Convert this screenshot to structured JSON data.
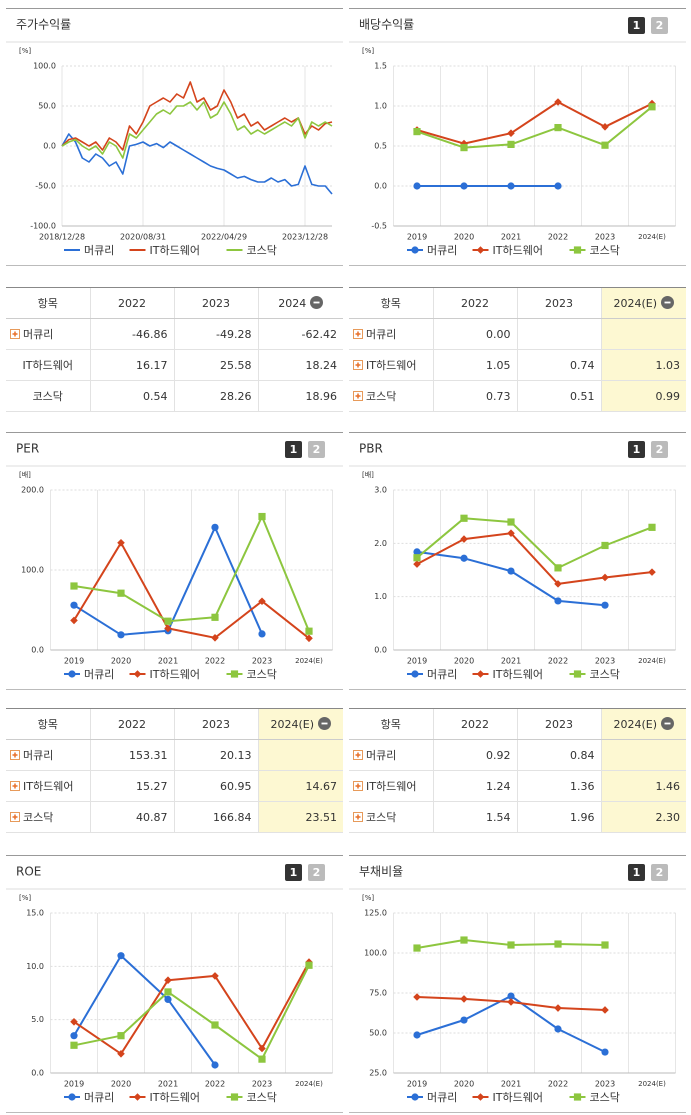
{
  "chart_data": [
    {
      "type": "line",
      "title": "주가수익률",
      "unit": "[%]",
      "categories": [
        "2018/12/28",
        null,
        null,
        null,
        null,
        null,
        null,
        null,
        null,
        null,
        null,
        null,
        "2020/08/31",
        null,
        null,
        null,
        null,
        null,
        null,
        null,
        null,
        null,
        null,
        null,
        "2022/04/29",
        null,
        null,
        null,
        null,
        null,
        null,
        null,
        null,
        null,
        null,
        null,
        "2023/12/28",
        null,
        null,
        null,
        null
      ],
      "ylim": [
        -100,
        100
      ],
      "yticks": [
        {
          "value": -100,
          "label": "-100.0"
        },
        {
          "value": -50,
          "label": "-50.0"
        },
        {
          "value": 0,
          "label": "0.0"
        },
        {
          "value": 50,
          "label": "50.0"
        },
        {
          "value": 100,
          "label": "100.0"
        }
      ],
      "grid": true,
      "markers": false,
      "series": [
        {
          "name": "머큐리",
          "color": "#2b6fd6",
          "marker": "circle",
          "values": [
            0,
            15,
            5,
            -15,
            -20,
            -10,
            -15,
            -25,
            -20,
            -35,
            0,
            2,
            5,
            0,
            3,
            -2,
            5,
            0,
            -5,
            -10,
            -15,
            -20,
            -25,
            -28,
            -30,
            -35,
            -40,
            -38,
            -42,
            -45,
            -45,
            -40,
            -45,
            -42,
            -50,
            -48,
            -25,
            -48,
            -50,
            -50,
            -60
          ]
        },
        {
          "name": "IT하드웨어",
          "color": "#d4441c",
          "marker": "diamond",
          "values": [
            0,
            8,
            10,
            5,
            0,
            5,
            -5,
            10,
            5,
            -5,
            25,
            15,
            30,
            50,
            55,
            60,
            55,
            65,
            60,
            80,
            55,
            60,
            45,
            50,
            70,
            55,
            35,
            40,
            25,
            30,
            20,
            25,
            30,
            35,
            30,
            35,
            15,
            25,
            20,
            28,
            30
          ]
        },
        {
          "name": "코스닥",
          "color": "#8dc63f",
          "marker": "square",
          "values": [
            0,
            5,
            8,
            0,
            -5,
            0,
            -10,
            5,
            0,
            -15,
            15,
            10,
            20,
            30,
            40,
            45,
            40,
            50,
            50,
            55,
            45,
            55,
            35,
            40,
            55,
            40,
            20,
            25,
            15,
            20,
            15,
            20,
            25,
            30,
            25,
            35,
            10,
            30,
            25,
            30,
            25
          ]
        }
      ]
    },
    {
      "type": "line",
      "title": "배당수익률",
      "unit": "[%]",
      "buttons": [
        "1",
        "2"
      ],
      "categories": [
        "2019",
        "2020",
        "2021",
        "2022",
        "2023",
        "2024(E)"
      ],
      "ylim": [
        -0.5,
        1.5
      ],
      "yticks": [
        -0.5,
        {
          "value": 0,
          "label": "0.0"
        },
        0.5,
        {
          "value": 1,
          "label": "1.0"
        },
        1.5
      ],
      "grid": true,
      "markers": true,
      "series": [
        {
          "name": "머큐리",
          "color": "#2b6fd6",
          "marker": "circle",
          "values": [
            0,
            0,
            0,
            0,
            null,
            null
          ]
        },
        {
          "name": "IT하드웨어",
          "color": "#d4441c",
          "marker": "diamond",
          "values": [
            0.7,
            0.53,
            0.66,
            1.05,
            0.74,
            1.03
          ]
        },
        {
          "name": "코스닥",
          "color": "#8dc63f",
          "marker": "square",
          "values": [
            0.68,
            0.48,
            0.52,
            0.73,
            0.51,
            0.99
          ]
        }
      ]
    },
    {
      "type": "line",
      "title": "PER",
      "unit": "[배]",
      "buttons": [
        "1",
        "2"
      ],
      "categories": [
        "2019",
        "2020",
        "2021",
        "2022",
        "2023",
        "2024(E)"
      ],
      "ylim": [
        0,
        200
      ],
      "yticks": [
        {
          "value": 0,
          "label": "0.0"
        },
        {
          "value": 100,
          "label": "100.0"
        },
        {
          "value": 200,
          "label": "200.0"
        }
      ],
      "grid": true,
      "markers": true,
      "series": [
        {
          "name": "머큐리",
          "color": "#2b6fd6",
          "marker": "circle",
          "values": [
            56,
            19,
            24,
            153.31,
            20.13,
            null
          ]
        },
        {
          "name": "IT하드웨어",
          "color": "#d4441c",
          "marker": "diamond",
          "values": [
            37,
            134,
            27,
            15.27,
            60.95,
            14.67
          ]
        },
        {
          "name": "코스닥",
          "color": "#8dc63f",
          "marker": "square",
          "values": [
            80,
            71,
            36,
            40.87,
            166.84,
            23.51
          ]
        }
      ]
    },
    {
      "type": "line",
      "title": "PBR",
      "unit": "[배]",
      "buttons": [
        "1",
        "2"
      ],
      "categories": [
        "2019",
        "2020",
        "2021",
        "2022",
        "2023",
        "2024(E)"
      ],
      "ylim": [
        0,
        3
      ],
      "yticks": [
        {
          "value": 0,
          "label": "0.0"
        },
        {
          "value": 1,
          "label": "1.0"
        },
        {
          "value": 2,
          "label": "2.0"
        },
        {
          "value": 3,
          "label": "3.0"
        }
      ],
      "grid": true,
      "markers": true,
      "series": [
        {
          "name": "머큐리",
          "color": "#2b6fd6",
          "marker": "circle",
          "values": [
            1.84,
            1.72,
            1.48,
            0.92,
            0.84,
            null
          ]
        },
        {
          "name": "IT하드웨어",
          "color": "#d4441c",
          "marker": "diamond",
          "values": [
            1.61,
            2.08,
            2.19,
            1.24,
            1.36,
            1.46
          ]
        },
        {
          "name": "코스닥",
          "color": "#8dc63f",
          "marker": "square",
          "values": [
            1.73,
            2.47,
            2.4,
            1.54,
            1.96,
            2.3
          ]
        }
      ]
    },
    {
      "type": "line",
      "title": "ROE",
      "unit": "[%]",
      "buttons": [
        "1",
        "2"
      ],
      "categories": [
        "2019",
        "2020",
        "2021",
        "2022",
        "2023",
        "2024(E)"
      ],
      "ylim": [
        0,
        15
      ],
      "yticks": [
        {
          "value": 0,
          "label": "0.0"
        },
        {
          "value": 5,
          "label": "5.0"
        },
        {
          "value": 10,
          "label": "10.0"
        },
        {
          "value": 15,
          "label": "15.0"
        }
      ],
      "grid": true,
      "markers": true,
      "series": [
        {
          "name": "머큐리",
          "color": "#2b6fd6",
          "marker": "circle",
          "values": [
            3.5,
            11,
            6.9,
            0.75,
            null,
            null
          ]
        },
        {
          "name": "IT하드웨어",
          "color": "#d4441c",
          "marker": "diamond",
          "values": [
            4.8,
            1.8,
            8.7,
            9.1,
            2.3,
            10.4
          ]
        },
        {
          "name": "코스닥",
          "color": "#8dc63f",
          "marker": "square",
          "values": [
            2.6,
            3.5,
            7.6,
            4.5,
            1.3,
            10.1
          ]
        }
      ]
    },
    {
      "type": "line",
      "title": "부채비율",
      "unit": "[%]",
      "buttons": [
        "1",
        "2"
      ],
      "categories": [
        "2019",
        "2020",
        "2021",
        "2022",
        "2023",
        "2024(E)"
      ],
      "ylim": [
        25,
        125
      ],
      "yticks": [
        {
          "value": 25,
          "label": "25.0"
        },
        {
          "value": 50,
          "label": "50.0"
        },
        {
          "value": 75,
          "label": "75.0"
        },
        {
          "value": 100,
          "label": "100.0"
        },
        {
          "value": 125,
          "label": "125.0"
        }
      ],
      "grid": true,
      "markers": true,
      "series": [
        {
          "name": "머큐리",
          "color": "#2b6fd6",
          "marker": "circle",
          "values": [
            48.75,
            58.1,
            73.1,
            52.5,
            38.1,
            null
          ]
        },
        {
          "name": "IT하드웨어",
          "color": "#d4441c",
          "marker": "diamond",
          "values": [
            72.5,
            71.3,
            69.4,
            65.6,
            64.4,
            null
          ]
        },
        {
          "name": "코스닥",
          "color": "#8dc63f",
          "marker": "square",
          "values": [
            103.1,
            108.1,
            105,
            105.6,
            105,
            null
          ]
        }
      ]
    }
  ],
  "tables": [
    {
      "header": [
        "항목",
        "2022",
        "2023",
        "2024"
      ],
      "expandable": [
        true,
        false,
        false
      ],
      "rows": [
        [
          "머큐리",
          "-46.86",
          "-49.28",
          "-62.42"
        ],
        [
          "IT하드웨어",
          "16.17",
          "25.58",
          "18.24"
        ],
        [
          "코스닥",
          "0.54",
          "28.26",
          "18.96"
        ]
      ]
    },
    {
      "header": [
        "항목",
        "2022",
        "2023",
        "2024(E)"
      ],
      "expandable": [
        true,
        true,
        true
      ],
      "highlight_color": "#fdf8d2",
      "rows": [
        [
          "머큐리",
          "0.00",
          null,
          null
        ],
        [
          "IT하드웨어",
          "1.05",
          "0.74",
          "1.03"
        ],
        [
          "코스닥",
          "0.73",
          "0.51",
          "0.99"
        ]
      ]
    },
    {
      "header": [
        "항목",
        "2022",
        "2023",
        "2024(E)"
      ],
      "expandable": [
        true,
        true,
        true
      ],
      "highlight_color": "#fdf8d2",
      "rows": [
        [
          "머큐리",
          "153.31",
          "20.13",
          null
        ],
        [
          "IT하드웨어",
          "15.27",
          "60.95",
          "14.67"
        ],
        [
          "코스닥",
          "40.87",
          "166.84",
          "23.51"
        ]
      ]
    },
    {
      "header": [
        "항목",
        "2022",
        "2023",
        "2024(E)"
      ],
      "expandable": [
        true,
        true,
        true
      ],
      "highlight_color": "#fdf8d2",
      "rows": [
        [
          "머큐리",
          "0.92",
          "0.84",
          null
        ],
        [
          "IT하드웨어",
          "1.24",
          "1.36",
          "1.46"
        ],
        [
          "코스닥",
          "1.54",
          "1.96",
          "2.30"
        ]
      ]
    }
  ]
}
